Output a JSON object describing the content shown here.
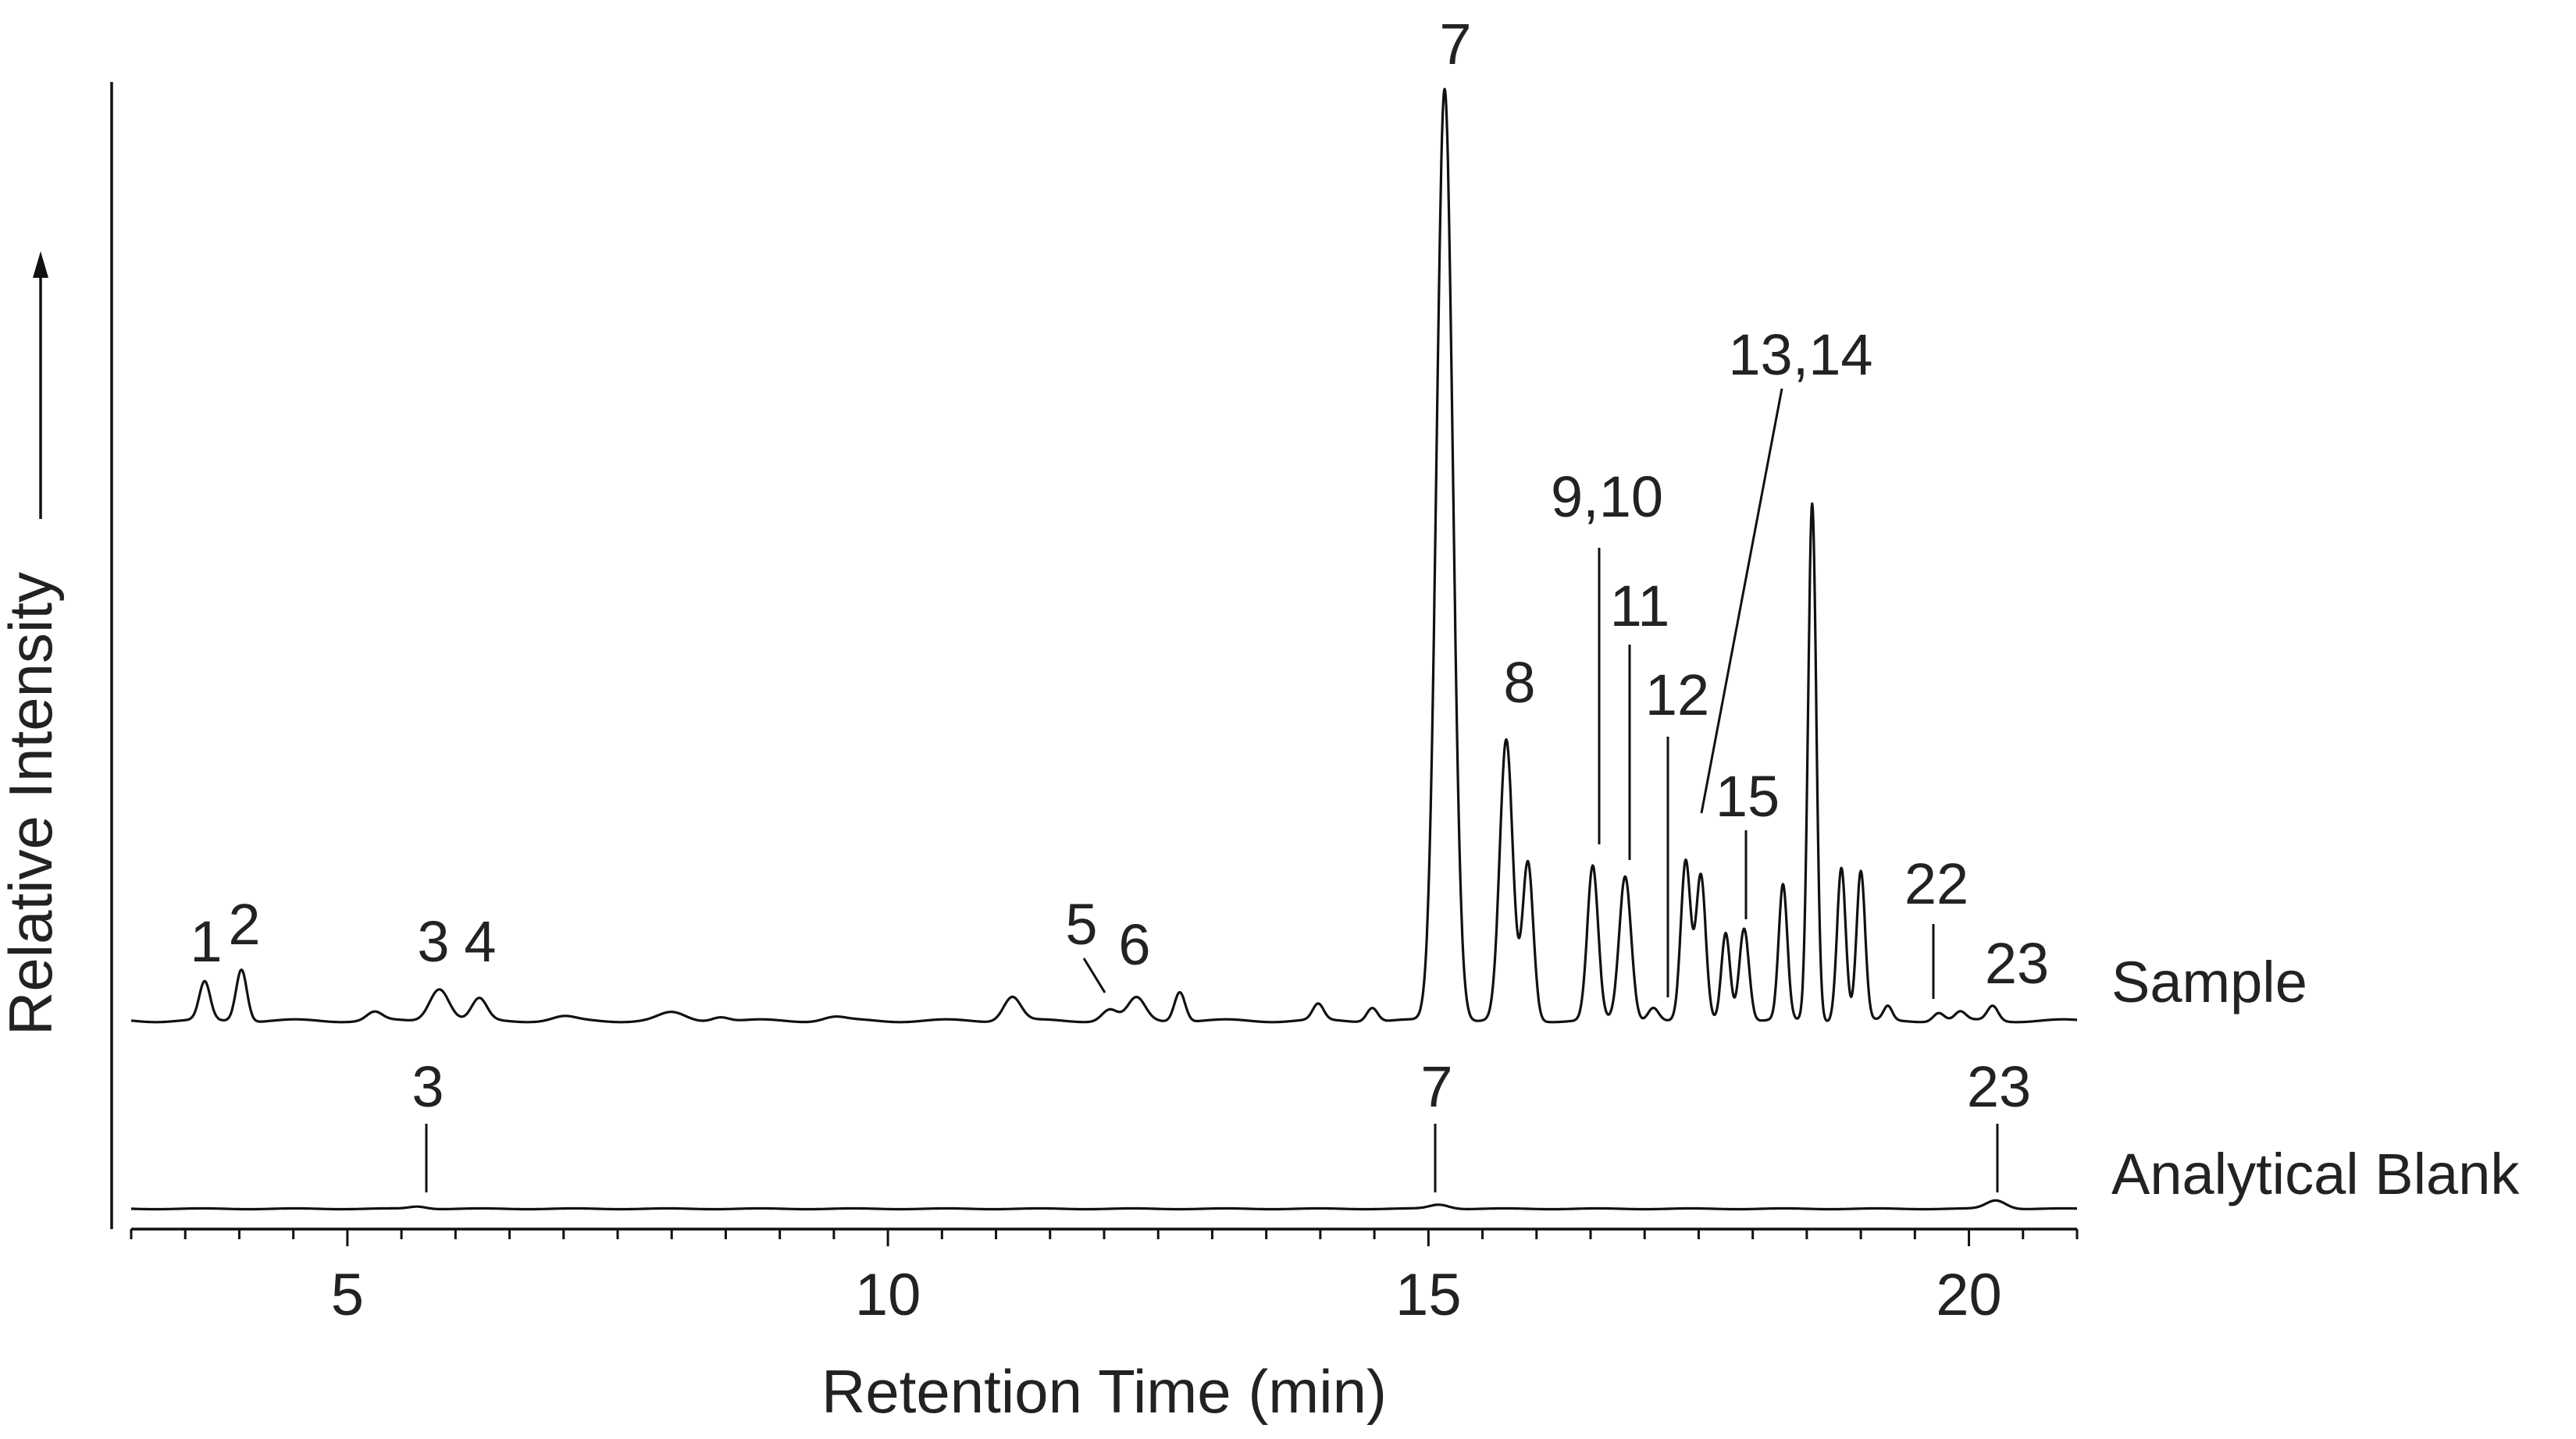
{
  "chart_data": {
    "type": "line",
    "xlabel": "Retention Time (min)",
    "ylabel": "Relative Intensity",
    "xlim": [
      3.0,
      21.0
    ],
    "ylim": [
      0,
      100
    ],
    "xticks": [
      5,
      10,
      15,
      20
    ],
    "minor_tick_step": 0.5,
    "series": [
      {
        "name": "Sample",
        "baseline": 1.0,
        "peaks": [
          {
            "t": 3.68,
            "h": 4.1,
            "w": 0.05
          },
          {
            "t": 4.02,
            "h": 5.6,
            "w": 0.05
          },
          {
            "t": 5.25,
            "h": 0.9,
            "w": 0.07
          },
          {
            "t": 5.85,
            "h": 3.5,
            "w": 0.09
          },
          {
            "t": 6.22,
            "h": 2.3,
            "w": 0.07
          },
          {
            "t": 7.0,
            "h": 0.4,
            "w": 0.1
          },
          {
            "t": 8.0,
            "h": 0.8,
            "w": 0.12
          },
          {
            "t": 8.45,
            "h": 0.5,
            "w": 0.08
          },
          {
            "t": 9.5,
            "h": 0.4,
            "w": 0.1
          },
          {
            "t": 11.15,
            "h": 2.6,
            "w": 0.08
          },
          {
            "t": 12.05,
            "h": 1.2,
            "w": 0.07
          },
          {
            "t": 12.3,
            "h": 2.4,
            "w": 0.08
          },
          {
            "t": 12.7,
            "h": 3.2,
            "w": 0.05
          },
          {
            "t": 13.98,
            "h": 1.7,
            "w": 0.05
          },
          {
            "t": 14.48,
            "h": 1.5,
            "w": 0.05
          },
          {
            "t": 15.15,
            "h": 100,
            "w": 0.075
          },
          {
            "t": 15.72,
            "h": 30,
            "w": 0.06
          },
          {
            "t": 15.92,
            "h": 17,
            "w": 0.05
          },
          {
            "t": 16.52,
            "h": 16.5,
            "w": 0.05
          },
          {
            "t": 16.82,
            "h": 15.5,
            "w": 0.055
          },
          {
            "t": 17.08,
            "h": 1.5,
            "w": 0.05
          },
          {
            "t": 17.38,
            "h": 17,
            "w": 0.045
          },
          {
            "t": 17.52,
            "h": 15.5,
            "w": 0.045
          },
          {
            "t": 17.75,
            "h": 9.5,
            "w": 0.04
          },
          {
            "t": 17.92,
            "h": 10,
            "w": 0.045
          },
          {
            "t": 18.28,
            "h": 14.5,
            "w": 0.04
          },
          {
            "t": 18.55,
            "h": 55.5,
            "w": 0.038
          },
          {
            "t": 18.82,
            "h": 16.5,
            "w": 0.04
          },
          {
            "t": 19.0,
            "h": 16,
            "w": 0.04
          },
          {
            "t": 19.25,
            "h": 1.5,
            "w": 0.04
          },
          {
            "t": 19.72,
            "h": 0.9,
            "w": 0.05
          },
          {
            "t": 19.92,
            "h": 0.9,
            "w": 0.05
          },
          {
            "t": 20.22,
            "h": 1.6,
            "w": 0.05
          }
        ]
      },
      {
        "name": "Analytical Blank",
        "baseline": 1.0,
        "peaks": [
          {
            "t": 5.65,
            "h": 0.25,
            "w": 0.08
          },
          {
            "t": 15.1,
            "h": 0.45,
            "w": 0.09
          },
          {
            "t": 20.25,
            "h": 0.9,
            "w": 0.09
          }
        ]
      }
    ],
    "peak_labels": {
      "sample": [
        {
          "text": "1",
          "t": 3.68
        },
        {
          "text": "2",
          "t": 4.02
        },
        {
          "text": "3",
          "t": 5.85
        },
        {
          "text": "4",
          "t": 6.22
        },
        {
          "text": "5",
          "t": 11.85
        },
        {
          "text": "6",
          "t": 12.3
        },
        {
          "text": "7",
          "t": 15.15
        },
        {
          "text": "8",
          "t": 15.72
        },
        {
          "text": "9,10",
          "t": 16.52
        },
        {
          "text": "11",
          "t": 16.82
        },
        {
          "text": "12",
          "t": 17.08
        },
        {
          "text": "13,14",
          "t": 17.38
        },
        {
          "text": "15",
          "t": 17.92
        },
        {
          "text": "22",
          "t": 19.6
        },
        {
          "text": "23",
          "t": 20.22
        }
      ],
      "blank": [
        {
          "text": "3",
          "t": 5.65
        },
        {
          "text": "7",
          "t": 15.1
        },
        {
          "text": "23",
          "t": 20.25
        }
      ]
    }
  }
}
